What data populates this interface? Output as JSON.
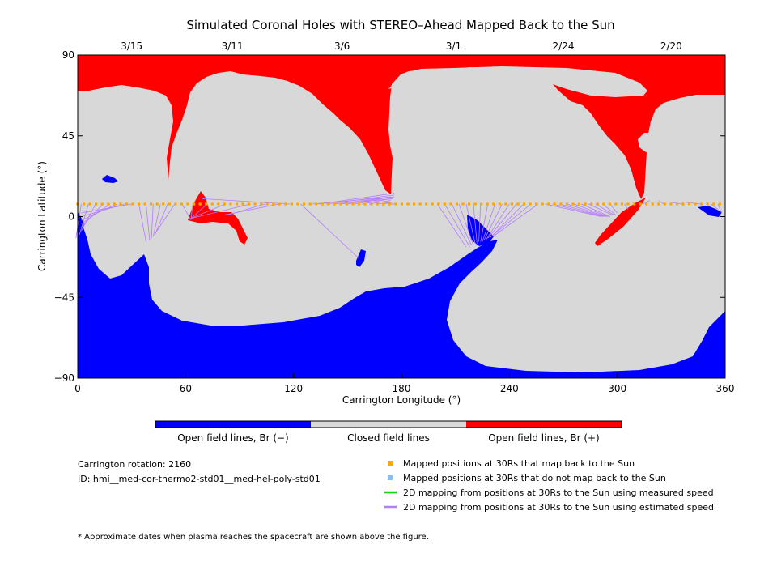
{
  "chart_data": {
    "type": "map",
    "title": "Simulated Coronal Holes with STEREO–Ahead Mapped Back to the Sun",
    "xlabel": "Carrington Longitude (°)",
    "ylabel": "Carrington Latitude (°)",
    "xlim": [
      0,
      360
    ],
    "ylim": [
      -90,
      90
    ],
    "x_ticks": [
      0,
      60,
      120,
      180,
      240,
      300,
      360
    ],
    "y_ticks": [
      90,
      45,
      0,
      -45,
      -90
    ],
    "top_axis": {
      "ticks": [
        {
          "longitude": 30,
          "label": "3/15"
        },
        {
          "longitude": 86,
          "label": "3/11"
        },
        {
          "longitude": 147,
          "label": "3/6"
        },
        {
          "longitude": 209,
          "label": "3/1"
        },
        {
          "longitude": 270,
          "label": "2/24"
        },
        {
          "longitude": 330,
          "label": "2/20"
        }
      ]
    },
    "colorbar": {
      "segments": [
        {
          "label": "Open field lines, Br (−)",
          "color": "#0000ff"
        },
        {
          "label": "Closed field lines",
          "color": "#d8d8d8"
        },
        {
          "label": "Open field lines, Br (+)",
          "color": "#ff0000"
        }
      ]
    },
    "mapped_latitude": 7,
    "mapped_points": {
      "longitude_start": 0,
      "longitude_end": 360,
      "step": 3.4,
      "color": "#ffa500"
    },
    "mapping_lines": [
      {
        "from": [
          2,
          7
        ],
        "to": [
          -1,
          -12
        ]
      },
      {
        "from": [
          6,
          7
        ],
        "to": [
          1,
          -10
        ]
      },
      {
        "from": [
          10,
          7
        ],
        "to": [
          2,
          -8
        ]
      },
      {
        "from": [
          14,
          7
        ],
        "to": [
          2,
          -6
        ]
      },
      {
        "from": [
          18,
          7
        ],
        "to": [
          2,
          -4
        ]
      },
      {
        "from": [
          22,
          7
        ],
        "to": [
          2,
          -2
        ]
      },
      {
        "from": [
          26,
          7
        ],
        "to": [
          2,
          0
        ]
      },
      {
        "from": [
          30,
          7
        ],
        "to": [
          2,
          2
        ]
      },
      {
        "from": [
          34,
          7
        ],
        "to": [
          38,
          -14
        ]
      },
      {
        "from": [
          38,
          7
        ],
        "to": [
          40,
          -13
        ]
      },
      {
        "from": [
          42,
          7
        ],
        "to": [
          41,
          -12
        ]
      },
      {
        "from": [
          46,
          7
        ],
        "to": [
          42,
          -11
        ]
      },
      {
        "from": [
          50,
          7
        ],
        "to": [
          43,
          -10
        ]
      },
      {
        "from": [
          54,
          7
        ],
        "to": [
          44,
          -8
        ]
      },
      {
        "from": [
          58,
          7
        ],
        "to": [
          63,
          -2
        ]
      },
      {
        "from": [
          64,
          7
        ],
        "to": [
          63,
          -1
        ]
      },
      {
        "from": [
          72,
          7
        ],
        "to": [
          63,
          -1
        ]
      },
      {
        "from": [
          82,
          7
        ],
        "to": [
          63,
          -1
        ]
      },
      {
        "from": [
          96,
          7
        ],
        "to": [
          63,
          -1
        ]
      },
      {
        "from": [
          104,
          7
        ],
        "to": [
          84,
          1
        ]
      },
      {
        "from": [
          112,
          7
        ],
        "to": [
          82,
          1
        ]
      },
      {
        "from": [
          118,
          7
        ],
        "to": [
          69,
          10
        ]
      },
      {
        "from": [
          124,
          7
        ],
        "to": [
          156,
          -23
        ]
      },
      {
        "from": [
          130,
          7
        ],
        "to": [
          176,
          11
        ]
      },
      {
        "from": [
          134,
          7
        ],
        "to": [
          176,
          13
        ]
      },
      {
        "from": [
          138,
          7
        ],
        "to": [
          176,
          12
        ]
      },
      {
        "from": [
          142,
          7
        ],
        "to": [
          176,
          11
        ]
      },
      {
        "from": [
          146,
          7
        ],
        "to": [
          175,
          10
        ]
      },
      {
        "from": [
          150,
          7
        ],
        "to": [
          173,
          11
        ]
      },
      {
        "from": [
          154,
          7
        ],
        "to": [
          174,
          11
        ]
      },
      {
        "from": [
          158,
          7
        ],
        "to": [
          174,
          10
        ]
      },
      {
        "from": [
          162,
          7
        ],
        "to": [
          174,
          9
        ]
      },
      {
        "from": [
          166,
          7
        ],
        "to": [
          175,
          8
        ]
      },
      {
        "from": [
          170,
          7
        ],
        "to": [
          175,
          8
        ]
      },
      {
        "from": [
          174,
          7
        ],
        "to": [
          176,
          7
        ]
      },
      {
        "from": [
          200,
          7
        ],
        "to": [
          216,
          -17
        ]
      },
      {
        "from": [
          204,
          7
        ],
        "to": [
          218,
          -17
        ]
      },
      {
        "from": [
          208,
          7
        ],
        "to": [
          219,
          -16
        ]
      },
      {
        "from": [
          212,
          7
        ],
        "to": [
          220,
          -16
        ]
      },
      {
        "from": [
          216,
          7
        ],
        "to": [
          221,
          -15
        ]
      },
      {
        "from": [
          220,
          7
        ],
        "to": [
          222,
          -15
        ]
      },
      {
        "from": [
          224,
          7
        ],
        "to": [
          223,
          -14
        ]
      },
      {
        "from": [
          228,
          7
        ],
        "to": [
          224,
          -14
        ]
      },
      {
        "from": [
          232,
          7
        ],
        "to": [
          225,
          -14
        ]
      },
      {
        "from": [
          236,
          7
        ],
        "to": [
          226,
          -13
        ]
      },
      {
        "from": [
          240,
          7
        ],
        "to": [
          227,
          -13
        ]
      },
      {
        "from": [
          244,
          7
        ],
        "to": [
          228,
          -12
        ]
      },
      {
        "from": [
          248,
          7
        ],
        "to": [
          229,
          -12
        ]
      },
      {
        "from": [
          252,
          7
        ],
        "to": [
          230,
          -11
        ]
      },
      {
        "from": [
          256,
          7
        ],
        "to": [
          231,
          -11
        ]
      },
      {
        "from": [
          260,
          7
        ],
        "to": [
          291,
          0
        ]
      },
      {
        "from": [
          264,
          7
        ],
        "to": [
          292,
          0
        ]
      },
      {
        "from": [
          268,
          7
        ],
        "to": [
          293,
          0
        ]
      },
      {
        "from": [
          272,
          7
        ],
        "to": [
          294,
          0
        ]
      },
      {
        "from": [
          276,
          7
        ],
        "to": [
          295,
          0
        ]
      },
      {
        "from": [
          280,
          7
        ],
        "to": [
          296,
          0
        ]
      },
      {
        "from": [
          284,
          7
        ],
        "to": [
          297,
          1
        ]
      },
      {
        "from": [
          288,
          7
        ],
        "to": [
          298,
          1
        ]
      },
      {
        "from": [
          292,
          7
        ],
        "to": [
          299,
          1
        ]
      },
      {
        "from": [
          296,
          7
        ],
        "to": [
          300,
          2
        ]
      },
      {
        "from": [
          304,
          7
        ],
        "to": [
          306,
          4
        ]
      },
      {
        "from": [
          314,
          7
        ],
        "to": [
          318,
          9
        ]
      },
      {
        "from": [
          326,
          7
        ],
        "to": [
          323,
          9
        ]
      },
      {
        "from": [
          336,
          7
        ],
        "to": [
          330,
          8
        ]
      },
      {
        "from": [
          346,
          7
        ],
        "to": [
          338,
          8
        ]
      },
      {
        "from": [
          352,
          7
        ],
        "to": [
          356,
          4
        ]
      },
      {
        "from": [
          356,
          7
        ],
        "to": [
          358,
          2
        ]
      }
    ]
  },
  "info": {
    "rotation": "Carrington rotation: 2160",
    "id": "ID: hmi__med-cor-thermo2-std01__med-hel-poly-std01"
  },
  "legend": [
    {
      "label": "Mapped positions at 30Rs that map back to the Sun",
      "color": "#ffa500",
      "kind": "square"
    },
    {
      "label": "Mapped positions at 30Rs that do not map back to the Sun",
      "color": "#87bff0",
      "kind": "square"
    },
    {
      "label": "2D mapping from positions at 30Rs to the Sun using measured speed",
      "color": "#00e000",
      "kind": "line"
    },
    {
      "label": "2D mapping from positions at 30Rs to the Sun using estimated speed",
      "color": "#b57cff",
      "kind": "line"
    }
  ],
  "footnote": "* Approximate dates when plasma reaches the spacecraft are shown above the figure."
}
